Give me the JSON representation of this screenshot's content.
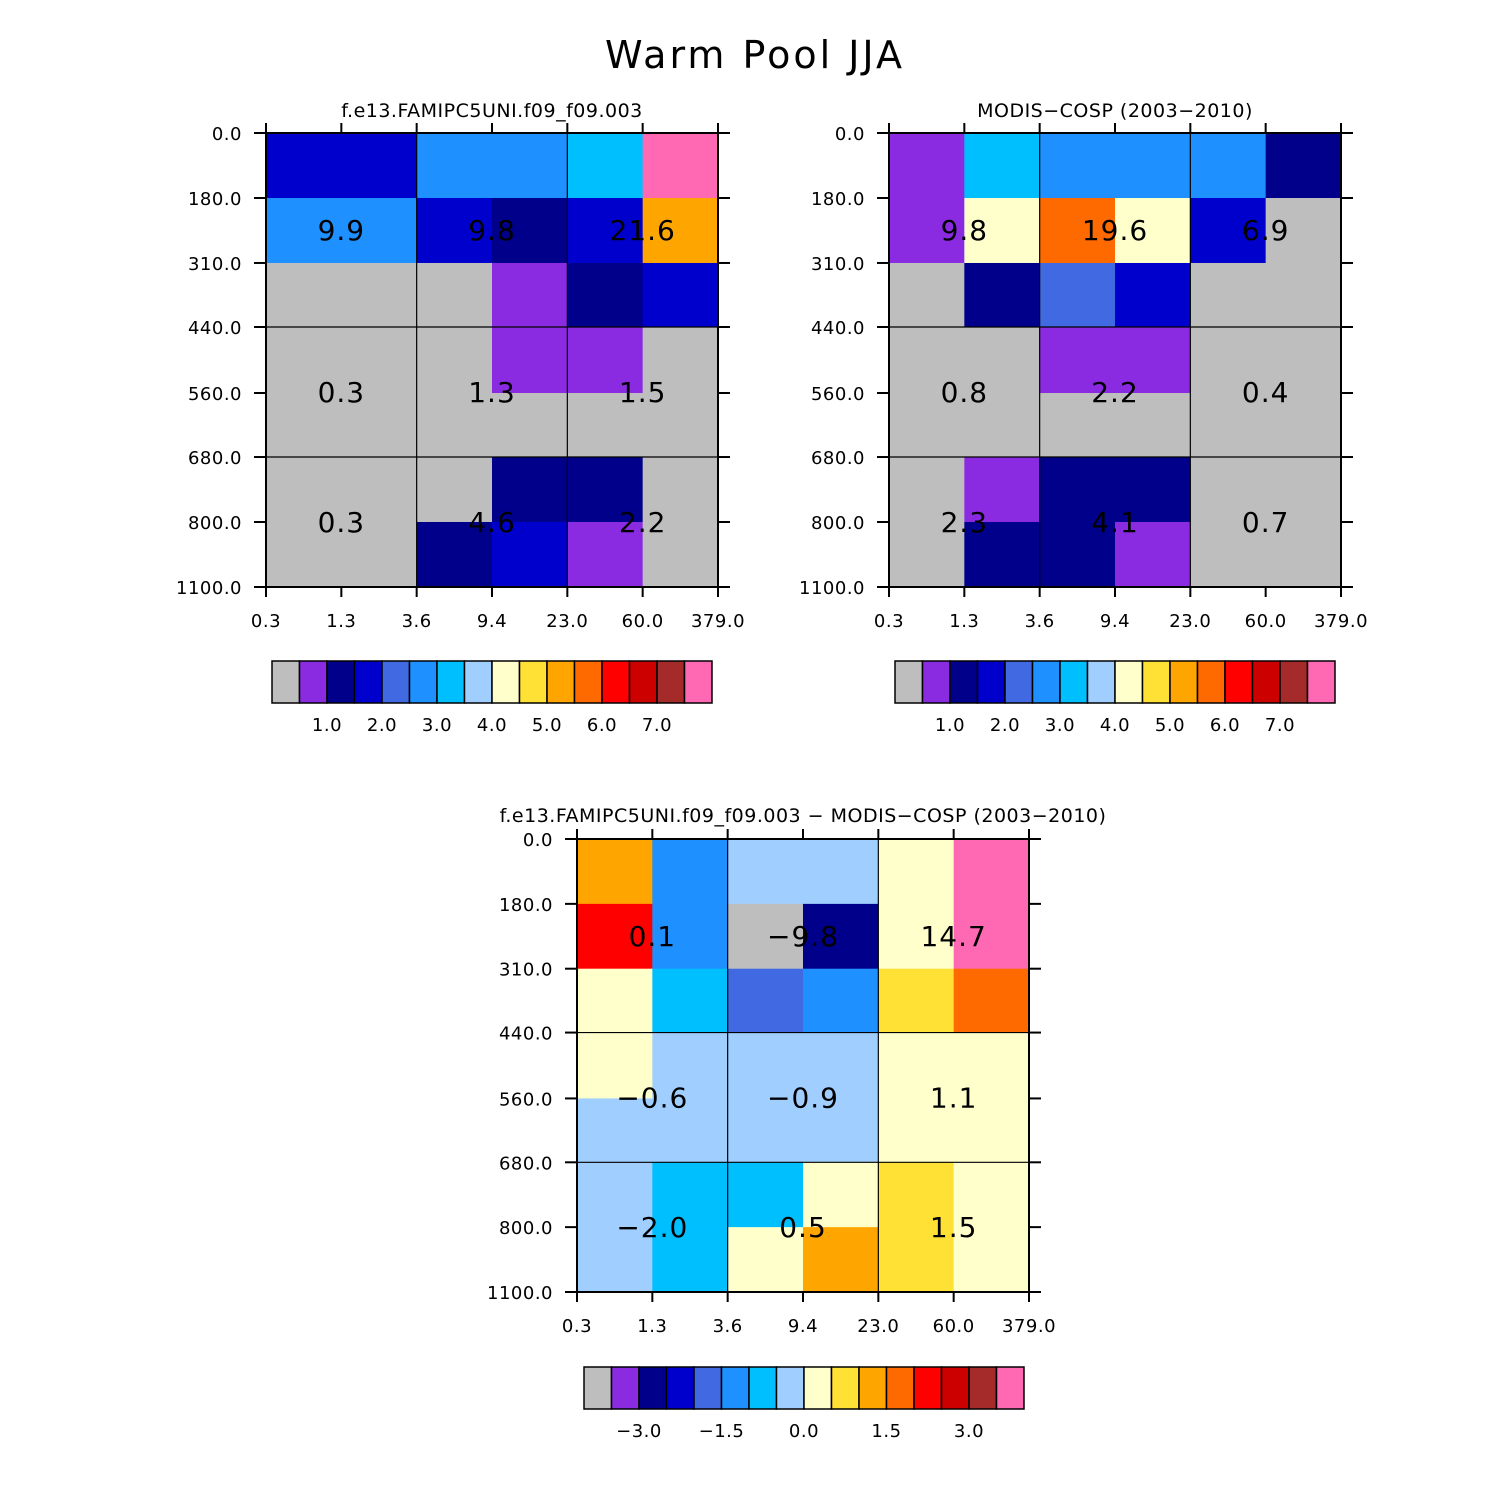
{
  "figure": {
    "title": "Warm Pool JJA"
  },
  "chart_data": [
    {
      "type": "heatmap",
      "title": "f.e13.FAMIPC5UNI.f09_f09.003",
      "x_ticks": [
        "0.3",
        "1.3",
        "3.6",
        "9.4",
        "23.0",
        "60.0",
        "379.0"
      ],
      "y_ticks": [
        "0.0",
        "180.0",
        "310.0",
        "440.0",
        "560.0",
        "680.0",
        "800.0",
        "1100.0"
      ],
      "cell_colors": [
        [
          "#0000CD",
          "#0000CD",
          "#1E90FF",
          "#1E90FF",
          "#00BFFF",
          "#FF69B4"
        ],
        [
          "#1E90FF",
          "#1E90FF",
          "#0000CD",
          "#00008B",
          "#0000CD",
          "#FFA500"
        ],
        [
          "#BEBEBE",
          "#BEBEBE",
          "#BEBEBE",
          "#8A2BE2",
          "#00008B",
          "#0000CD"
        ],
        [
          "#BEBEBE",
          "#BEBEBE",
          "#BEBEBE",
          "#8A2BE2",
          "#8A2BE2",
          "#BEBEBE"
        ],
        [
          "#BEBEBE",
          "#BEBEBE",
          "#BEBEBE",
          "#BEBEBE",
          "#BEBEBE",
          "#BEBEBE"
        ],
        [
          "#BEBEBE",
          "#BEBEBE",
          "#BEBEBE",
          "#00008B",
          "#00008B",
          "#BEBEBE"
        ],
        [
          "#BEBEBE",
          "#BEBEBE",
          "#00008B",
          "#0000CD",
          "#8A2BE2",
          "#BEBEBE"
        ]
      ],
      "groups": [
        {
          "row": 0,
          "col": 0,
          "label": "9.9"
        },
        {
          "row": 0,
          "col": 1,
          "label": "9.8"
        },
        {
          "row": 0,
          "col": 2,
          "label": "21.6"
        },
        {
          "row": 1,
          "col": 0,
          "label": "0.3"
        },
        {
          "row": 1,
          "col": 1,
          "label": "1.3"
        },
        {
          "row": 1,
          "col": 2,
          "label": "1.5"
        },
        {
          "row": 2,
          "col": 0,
          "label": "0.3"
        },
        {
          "row": 2,
          "col": 1,
          "label": "4.6"
        },
        {
          "row": 2,
          "col": 2,
          "label": "2.2"
        }
      ],
      "colorbar": {
        "colors": [
          "#BEBEBE",
          "#8A2BE2",
          "#00008B",
          "#0000CD",
          "#4169E1",
          "#1E90FF",
          "#00BFFF",
          "#A0CFFF",
          "#FFFFCC",
          "#FFE135",
          "#FFA500",
          "#FF6A00",
          "#FF0000",
          "#CD0000",
          "#A52A2A",
          "#FF69B4"
        ],
        "labels": [
          {
            "boundary": 2,
            "text": "1.0"
          },
          {
            "boundary": 4,
            "text": "2.0"
          },
          {
            "boundary": 6,
            "text": "3.0"
          },
          {
            "boundary": 8,
            "text": "4.0"
          },
          {
            "boundary": 10,
            "text": "5.0"
          },
          {
            "boundary": 12,
            "text": "6.0"
          },
          {
            "boundary": 14,
            "text": "7.0"
          }
        ]
      }
    },
    {
      "type": "heatmap",
      "title": "MODIS-COSP (2003-2010)",
      "x_ticks": [
        "0.3",
        "1.3",
        "3.6",
        "9.4",
        "23.0",
        "60.0",
        "379.0"
      ],
      "y_ticks": [
        "0.0",
        "180.0",
        "310.0",
        "440.0",
        "560.0",
        "680.0",
        "800.0",
        "1100.0"
      ],
      "cell_colors": [
        [
          "#8A2BE2",
          "#00BFFF",
          "#1E90FF",
          "#1E90FF",
          "#1E90FF",
          "#00008B"
        ],
        [
          "#8A2BE2",
          "#FFFFCC",
          "#FF6A00",
          "#FFFFCC",
          "#0000CD",
          "#BEBEBE"
        ],
        [
          "#BEBEBE",
          "#00008B",
          "#4169E1",
          "#0000CD",
          "#BEBEBE",
          "#BEBEBE"
        ],
        [
          "#BEBEBE",
          "#BEBEBE",
          "#8A2BE2",
          "#8A2BE2",
          "#BEBEBE",
          "#BEBEBE"
        ],
        [
          "#BEBEBE",
          "#BEBEBE",
          "#BEBEBE",
          "#BEBEBE",
          "#BEBEBE",
          "#BEBEBE"
        ],
        [
          "#BEBEBE",
          "#8A2BE2",
          "#00008B",
          "#00008B",
          "#BEBEBE",
          "#BEBEBE"
        ],
        [
          "#BEBEBE",
          "#00008B",
          "#00008B",
          "#8A2BE2",
          "#BEBEBE",
          "#BEBEBE"
        ]
      ],
      "groups": [
        {
          "row": 0,
          "col": 0,
          "label": "9.8"
        },
        {
          "row": 0,
          "col": 1,
          "label": "19.6"
        },
        {
          "row": 0,
          "col": 2,
          "label": "6.9"
        },
        {
          "row": 1,
          "col": 0,
          "label": "0.8"
        },
        {
          "row": 1,
          "col": 1,
          "label": "2.2"
        },
        {
          "row": 1,
          "col": 2,
          "label": "0.4"
        },
        {
          "row": 2,
          "col": 0,
          "label": "2.3"
        },
        {
          "row": 2,
          "col": 1,
          "label": "4.1"
        },
        {
          "row": 2,
          "col": 2,
          "label": "0.7"
        }
      ],
      "colorbar": {
        "colors": [
          "#BEBEBE",
          "#8A2BE2",
          "#00008B",
          "#0000CD",
          "#4169E1",
          "#1E90FF",
          "#00BFFF",
          "#A0CFFF",
          "#FFFFCC",
          "#FFE135",
          "#FFA500",
          "#FF6A00",
          "#FF0000",
          "#CD0000",
          "#A52A2A",
          "#FF69B4"
        ],
        "labels": [
          {
            "boundary": 2,
            "text": "1.0"
          },
          {
            "boundary": 4,
            "text": "2.0"
          },
          {
            "boundary": 6,
            "text": "3.0"
          },
          {
            "boundary": 8,
            "text": "4.0"
          },
          {
            "boundary": 10,
            "text": "5.0"
          },
          {
            "boundary": 12,
            "text": "6.0"
          },
          {
            "boundary": 14,
            "text": "7.0"
          }
        ]
      }
    },
    {
      "type": "heatmap",
      "title": "f.e13.FAMIPC5UNI.f09_f09.003 - MODIS-COSP (2003-2010)",
      "x_ticks": [
        "0.3",
        "1.3",
        "3.6",
        "9.4",
        "23.0",
        "60.0",
        "379.0"
      ],
      "y_ticks": [
        "0.0",
        "180.0",
        "310.0",
        "440.0",
        "560.0",
        "680.0",
        "800.0",
        "1100.0"
      ],
      "cell_colors": [
        [
          "#FFA500",
          "#1E90FF",
          "#A0CFFF",
          "#A0CFFF",
          "#FFFFCC",
          "#FF69B4"
        ],
        [
          "#FF0000",
          "#1E90FF",
          "#BEBEBE",
          "#00008B",
          "#FFFFCC",
          "#FF69B4"
        ],
        [
          "#FFFFCC",
          "#00BFFF",
          "#4169E1",
          "#1E90FF",
          "#FFE135",
          "#FF6A00"
        ],
        [
          "#FFFFCC",
          "#A0CFFF",
          "#A0CFFF",
          "#A0CFFF",
          "#FFFFCC",
          "#FFFFCC"
        ],
        [
          "#A0CFFF",
          "#A0CFFF",
          "#A0CFFF",
          "#A0CFFF",
          "#FFFFCC",
          "#FFFFCC"
        ],
        [
          "#A0CFFF",
          "#00BFFF",
          "#00BFFF",
          "#FFFFCC",
          "#FFE135",
          "#FFFFCC"
        ],
        [
          "#A0CFFF",
          "#00BFFF",
          "#FFFFCC",
          "#FFA500",
          "#FFE135",
          "#FFFFCC"
        ]
      ],
      "groups": [
        {
          "row": 0,
          "col": 0,
          "label": "0.1"
        },
        {
          "row": 0,
          "col": 1,
          "label": "-9.8"
        },
        {
          "row": 0,
          "col": 2,
          "label": "14.7"
        },
        {
          "row": 1,
          "col": 0,
          "label": "-0.6"
        },
        {
          "row": 1,
          "col": 1,
          "label": "-0.9"
        },
        {
          "row": 1,
          "col": 2,
          "label": "1.1"
        },
        {
          "row": 2,
          "col": 0,
          "label": "-2.0"
        },
        {
          "row": 2,
          "col": 1,
          "label": "0.5"
        },
        {
          "row": 2,
          "col": 2,
          "label": "1.5"
        }
      ],
      "colorbar": {
        "colors": [
          "#BEBEBE",
          "#8A2BE2",
          "#00008B",
          "#0000CD",
          "#4169E1",
          "#1E90FF",
          "#00BFFF",
          "#A0CFFF",
          "#FFFFCC",
          "#FFE135",
          "#FFA500",
          "#FF6A00",
          "#FF0000",
          "#CD0000",
          "#A52A2A",
          "#FF69B4"
        ],
        "labels": [
          {
            "boundary": 2,
            "text": "-3.0"
          },
          {
            "boundary": 5,
            "text": "-1.5"
          },
          {
            "boundary": 8,
            "text": "0.0"
          },
          {
            "boundary": 11,
            "text": "1.5"
          },
          {
            "boundary": 14,
            "text": "3.0"
          }
        ]
      }
    }
  ]
}
